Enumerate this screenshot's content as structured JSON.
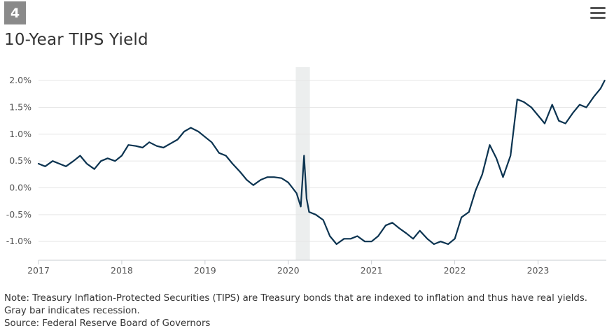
{
  "badge": "4",
  "menu_icon": "hamburger-menu-icon",
  "chart_data": {
    "type": "line",
    "title": "10-Year TIPS Yield",
    "xlabel": "",
    "ylabel": "",
    "xlim": [
      2017.0,
      2023.82
    ],
    "ylim": [
      -1.35,
      2.25
    ],
    "y_ticks": [
      2.0,
      1.5,
      1.0,
      0.5,
      0.0,
      -0.5,
      -1.0
    ],
    "y_tick_labels": [
      "2.0%",
      "1.5%",
      "1.0%",
      "0.5%",
      "0.0%",
      "-0.5%",
      "-1.0%"
    ],
    "x_ticks": [
      2017,
      2018,
      2019,
      2020,
      2021,
      2022,
      2023
    ],
    "x_tick_labels": [
      "2017",
      "2018",
      "2019",
      "2020",
      "2021",
      "2022",
      "2023"
    ],
    "grid": true,
    "recession": {
      "start": 2020.09,
      "end": 2020.26,
      "color": "#eceeee"
    },
    "line_color": "#0b3350",
    "series": [
      {
        "name": "10-Year TIPS Yield",
        "x": [
          2017.0,
          2017.08,
          2017.17,
          2017.25,
          2017.33,
          2017.42,
          2017.5,
          2017.58,
          2017.67,
          2017.75,
          2017.83,
          2017.92,
          2018.0,
          2018.08,
          2018.17,
          2018.25,
          2018.33,
          2018.42,
          2018.5,
          2018.58,
          2018.67,
          2018.75,
          2018.83,
          2018.92,
          2019.0,
          2019.08,
          2019.17,
          2019.25,
          2019.33,
          2019.42,
          2019.5,
          2019.58,
          2019.67,
          2019.75,
          2019.83,
          2019.92,
          2020.0,
          2020.05,
          2020.1,
          2020.15,
          2020.19,
          2020.22,
          2020.25,
          2020.33,
          2020.42,
          2020.5,
          2020.58,
          2020.67,
          2020.75,
          2020.83,
          2020.92,
          2021.0,
          2021.08,
          2021.17,
          2021.25,
          2021.33,
          2021.42,
          2021.5,
          2021.58,
          2021.67,
          2021.75,
          2021.83,
          2021.92,
          2022.0,
          2022.08,
          2022.17,
          2022.25,
          2022.33,
          2022.42,
          2022.5,
          2022.58,
          2022.67,
          2022.75,
          2022.83,
          2022.92,
          2023.0,
          2023.08,
          2023.17,
          2023.25,
          2023.33,
          2023.42,
          2023.5,
          2023.58,
          2023.67,
          2023.75,
          2023.8
        ],
        "values": [
          0.45,
          0.4,
          0.5,
          0.45,
          0.4,
          0.5,
          0.6,
          0.45,
          0.35,
          0.5,
          0.55,
          0.5,
          0.6,
          0.8,
          0.78,
          0.75,
          0.85,
          0.78,
          0.75,
          0.82,
          0.9,
          1.05,
          1.12,
          1.05,
          0.95,
          0.85,
          0.65,
          0.6,
          0.45,
          0.3,
          0.15,
          0.05,
          0.15,
          0.2,
          0.2,
          0.18,
          0.1,
          0.0,
          -0.1,
          -0.35,
          0.6,
          -0.2,
          -0.45,
          -0.5,
          -0.6,
          -0.9,
          -1.05,
          -0.95,
          -0.95,
          -0.9,
          -1.0,
          -1.0,
          -0.9,
          -0.7,
          -0.65,
          -0.75,
          -0.85,
          -0.95,
          -0.8,
          -0.95,
          -1.05,
          -1.0,
          -1.05,
          -0.95,
          -0.55,
          -0.45,
          -0.05,
          0.25,
          0.8,
          0.55,
          0.2,
          0.6,
          1.65,
          1.6,
          1.5,
          1.35,
          1.2,
          1.55,
          1.25,
          1.2,
          1.4,
          1.55,
          1.5,
          1.7,
          1.85,
          2.0
        ]
      }
    ]
  },
  "note": {
    "line1": "Note: Treasury Inflation-Protected Securities (TIPS) are Treasury bonds that are indexed to inflation and thus have real yields.",
    "line2": "Gray bar indicates recession.",
    "line3": "Source: Federal Reserve Board of Governors"
  }
}
